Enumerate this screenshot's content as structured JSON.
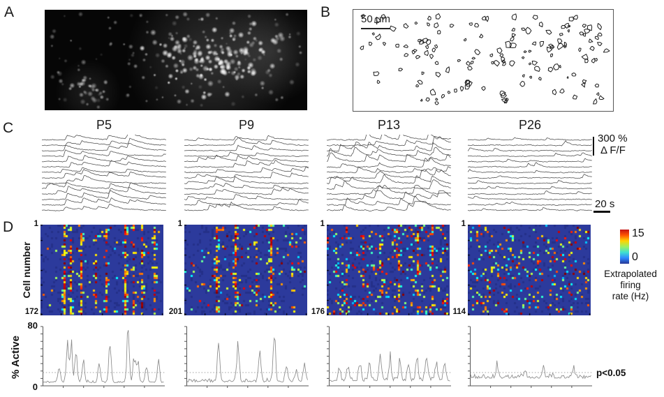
{
  "panels": {
    "a": "A",
    "b": "B",
    "c": "C",
    "d": "D"
  },
  "panel_b": {
    "scale_label": "50 μm"
  },
  "panel_c": {
    "titles": [
      "P5",
      "P9",
      "P13",
      "P26"
    ],
    "amplitude_scale": {
      "value": "300 %",
      "unit": "Δ F/F"
    },
    "time_scale": "20 s"
  },
  "panel_d": {
    "ylabel": "Cell number",
    "heatmaps": [
      {
        "title": "P5",
        "first_cell": "1",
        "last_cell": "172"
      },
      {
        "title": "P9",
        "first_cell": "1",
        "last_cell": "201"
      },
      {
        "title": "P13",
        "first_cell": "1",
        "last_cell": "176"
      },
      {
        "title": "P26",
        "first_cell": "1",
        "last_cell": "114"
      }
    ],
    "colorbar": {
      "max": "15",
      "min": "0",
      "caption": [
        "Extrapolated",
        "firing",
        "rate (Hz)"
      ]
    }
  },
  "active_plots": {
    "ylabel": "% Active",
    "ymax": "80",
    "ymin": "0",
    "ylim": [
      0,
      80
    ],
    "threshold_value": 18,
    "significance": "p<0.05"
  },
  "colors": {
    "heat_bg": "#2c3a9c",
    "trace": "#4a4a4a",
    "active_line": "#8a8a8a",
    "threshold": "#999999",
    "axis": "#555555",
    "colorbar_stops": [
      "#c41111",
      "#ff5500",
      "#ffd300",
      "#9cf060",
      "#3fe0d0",
      "#2e86ff",
      "#283795"
    ]
  },
  "generation": {
    "panel_a": {
      "seed": 601,
      "n_scatter": 135,
      "n_cluster": 150,
      "n_corner": 28
    },
    "panel_b": {
      "seed": 602,
      "n_cells": 150
    },
    "traces": [
      {
        "seed": 11,
        "sync": [
          0.2,
          0.33,
          0.55,
          0.7
        ],
        "sync_prob": 0.82,
        "sync_amp": [
          4,
          9
        ],
        "rand_events": 1,
        "amp": [
          3,
          6
        ],
        "tau": [
          14,
          22
        ],
        "noise": 0.8
      },
      {
        "seed": 22,
        "sync": [
          0.26,
          0.42,
          0.72
        ],
        "sync_prob": 0.6,
        "sync_amp": [
          4,
          9
        ],
        "rand_events": 2,
        "amp": [
          3,
          8
        ],
        "tau": [
          10,
          16
        ],
        "noise": 0.9
      },
      {
        "seed": 33,
        "sync": [
          0.42,
          0.72,
          0.85
        ],
        "sync_prob": 0.55,
        "sync_amp": [
          4,
          12
        ],
        "rand_events": 4,
        "amp": [
          4,
          11
        ],
        "tau": [
          8,
          14
        ],
        "noise": 1.3
      },
      {
        "seed": 44,
        "sync": [],
        "sync_prob": 0,
        "sync_amp": [
          0,
          0
        ],
        "rand_events": 2,
        "amp": [
          2,
          5
        ],
        "tau": [
          5,
          9
        ],
        "noise": 0.85
      }
    ],
    "heatmaps": [
      {
        "seed": 101,
        "speckle": 0.018,
        "cols": [
          [
            0.2,
            0.9
          ],
          [
            0.24,
            0.65
          ],
          [
            0.33,
            0.8
          ],
          [
            0.46,
            0.5
          ],
          [
            0.55,
            0.6
          ],
          [
            0.7,
            0.9
          ],
          [
            0.78,
            0.55
          ],
          [
            0.85,
            0.5
          ],
          [
            0.95,
            0.55
          ]
        ]
      },
      {
        "seed": 202,
        "speckle": 0.05,
        "cols": [
          [
            0.26,
            0.85
          ],
          [
            0.42,
            0.8
          ],
          [
            0.6,
            0.5
          ],
          [
            0.72,
            0.85
          ],
          [
            0.9,
            0.35
          ]
        ]
      },
      {
        "seed": 303,
        "speckle": 0.1,
        "cols": [
          [
            0.15,
            0.35
          ],
          [
            0.3,
            0.4
          ],
          [
            0.45,
            0.35
          ],
          [
            0.6,
            0.4
          ],
          [
            0.75,
            0.45
          ],
          [
            0.88,
            0.35
          ]
        ]
      },
      {
        "seed": 404,
        "speckle": 0.1,
        "cols": []
      }
    ],
    "active": [
      {
        "seed": 501,
        "base": 4,
        "noise": 3,
        "peaks": [
          [
            0.13,
            26
          ],
          [
            0.2,
            50
          ],
          [
            0.23,
            55
          ],
          [
            0.27,
            38
          ],
          [
            0.33,
            30
          ],
          [
            0.46,
            24
          ],
          [
            0.55,
            60
          ],
          [
            0.7,
            68
          ],
          [
            0.75,
            34
          ],
          [
            0.78,
            28
          ],
          [
            0.85,
            24
          ],
          [
            0.95,
            27
          ]
        ]
      },
      {
        "seed": 502,
        "base": 5,
        "noise": 4,
        "peaks": [
          [
            0.26,
            60
          ],
          [
            0.42,
            58
          ],
          [
            0.6,
            33
          ],
          [
            0.72,
            58
          ],
          [
            0.82,
            20
          ],
          [
            0.9,
            16
          ],
          [
            0.97,
            24
          ]
        ]
      },
      {
        "seed": 503,
        "base": 6,
        "noise": 5,
        "peaks": [
          [
            0.08,
            16
          ],
          [
            0.15,
            20
          ],
          [
            0.25,
            26
          ],
          [
            0.33,
            23
          ],
          [
            0.42,
            33
          ],
          [
            0.5,
            28
          ],
          [
            0.58,
            26
          ],
          [
            0.65,
            23
          ],
          [
            0.72,
            28
          ],
          [
            0.8,
            33
          ],
          [
            0.88,
            26
          ],
          [
            0.95,
            30
          ]
        ]
      },
      {
        "seed": 504,
        "base": 10,
        "noise": 5,
        "peaks": [
          [
            0.22,
            16
          ],
          [
            0.45,
            10
          ],
          [
            0.6,
            12
          ],
          [
            0.85,
            14
          ]
        ]
      }
    ]
  }
}
